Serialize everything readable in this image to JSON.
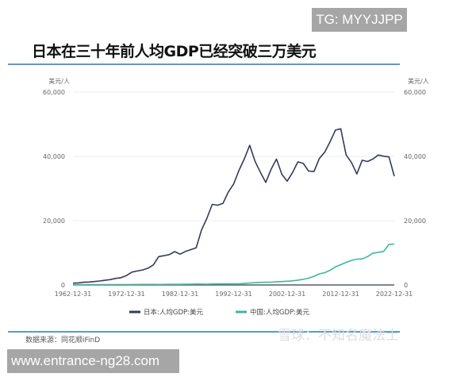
{
  "overlay_top": "TG: MYYJJPP",
  "overlay_bottom": "www.entrance-ng28.com",
  "source": "数据来源：同花顺iFinD",
  "watermark": "雪球：不知名魔法士",
  "chart_data": {
    "type": "line",
    "title": "日本在三十年前人均GDP已经突破三万美元",
    "ylabel_left": "美元/人",
    "ylabel_right": "美元/人",
    "ylim": [
      0,
      60000
    ],
    "yticks": [
      "0",
      "20,000",
      "40,000",
      "60,000"
    ],
    "yticks_values": [
      0,
      20000,
      40000,
      60000
    ],
    "xticks": [
      "1962-12-31",
      "1972-12-31",
      "1982-12-31",
      "1992-12-31",
      "2002-12-31",
      "2012-12-31",
      "2022-12-31"
    ],
    "xlim": [
      1962,
      2022
    ],
    "legend_position": "bottom",
    "x": [
      1962,
      1963,
      1964,
      1965,
      1966,
      1967,
      1968,
      1969,
      1970,
      1971,
      1972,
      1973,
      1974,
      1975,
      1976,
      1977,
      1978,
      1979,
      1980,
      1981,
      1982,
      1983,
      1984,
      1985,
      1986,
      1987,
      1988,
      1989,
      1990,
      1991,
      1992,
      1993,
      1994,
      1995,
      1996,
      1997,
      1998,
      1999,
      2000,
      2001,
      2002,
      2003,
      2004,
      2005,
      2006,
      2007,
      2008,
      2009,
      2010,
      2011,
      2012,
      2013,
      2014,
      2015,
      2016,
      2017,
      2018,
      2019,
      2020,
      2021,
      2022
    ],
    "series": [
      {
        "name": "日本:人均GDP:美元",
        "color": "#353a5c",
        "values": [
          560,
          640,
          840,
          920,
          1060,
          1230,
          1450,
          1670,
          2040,
          2270,
          2940,
          3990,
          4350,
          4660,
          5200,
          6230,
          8820,
          9100,
          9460,
          10360,
          9580,
          10420,
          10980,
          11580,
          17110,
          20750,
          25050,
          24810,
          25360,
          28910,
          31410,
          35680,
          39270,
          43440,
          38440,
          35020,
          31900,
          36030,
          39170,
          34410,
          32290,
          35000,
          38300,
          37810,
          35430,
          35280,
          39340,
          41310,
          44500,
          48170,
          48600,
          40450,
          38100,
          34520,
          38790,
          38390,
          39160,
          40420,
          40040,
          39830,
          33820
        ]
      },
      {
        "name": "中国:人均GDP:美元",
        "color": "#3bb89c",
        "values": [
          70,
          73,
          85,
          98,
          104,
          97,
          91,
          100,
          113,
          119,
          132,
          157,
          160,
          178,
          165,
          185,
          156,
          183,
          195,
          197,
          203,
          225,
          250,
          294,
          282,
          252,
          284,
          311,
          318,
          333,
          366,
          377,
          473,
          609,
          709,
          781,
          828,
          873,
          959,
          1053,
          1149,
          1289,
          1509,
          1753,
          2099,
          2694,
          3468,
          3832,
          4550,
          5614,
          6300,
          7020,
          7636,
          8016,
          8094,
          8817,
          9905,
          10144,
          10409,
          12617,
          12720
        ]
      }
    ]
  }
}
